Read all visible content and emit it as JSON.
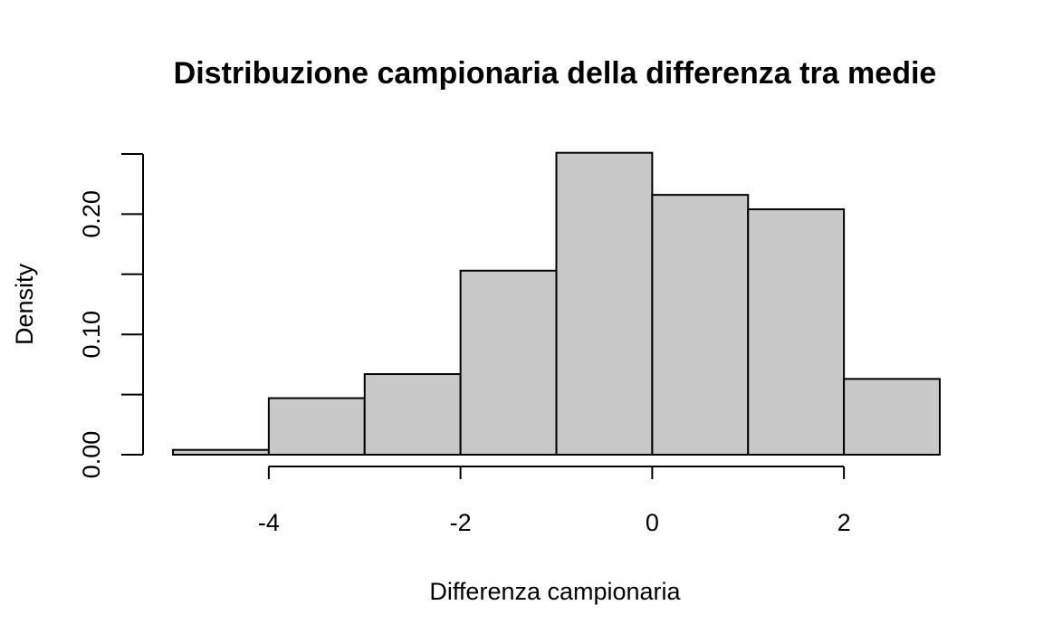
{
  "chart_data": {
    "type": "bar",
    "title": "Distribuzione campionaria della differenza tra medie",
    "xlabel": "Differenza campionaria",
    "ylabel": "Density",
    "bins": [
      {
        "from": -5,
        "to": -4,
        "density": 0.004
      },
      {
        "from": -4,
        "to": -3,
        "density": 0.047
      },
      {
        "from": -3,
        "to": -2,
        "density": 0.067
      },
      {
        "from": -2,
        "to": -1,
        "density": 0.153
      },
      {
        "from": -1,
        "to": 0,
        "density": 0.251
      },
      {
        "from": 0,
        "to": 1,
        "density": 0.216
      },
      {
        "from": 1,
        "to": 2,
        "density": 0.204
      },
      {
        "from": 2,
        "to": 3,
        "density": 0.063
      }
    ],
    "xlim": [
      -5,
      3
    ],
    "ylim": [
      0,
      0.25
    ],
    "x_ticks": [
      -4,
      -2,
      0,
      2
    ],
    "x_tick_labels": [
      "-4",
      "-2",
      "0",
      "2"
    ],
    "y_ticks": [
      0,
      0.05,
      0.1,
      0.15,
      0.2,
      0.25
    ],
    "y_tick_labels": [
      "0.00",
      "0.10",
      "0.20"
    ],
    "y_labeled_ticks": [
      0,
      0.1,
      0.2
    ],
    "bar_color": "#c8c8c8",
    "grid": false,
    "legend": "none"
  }
}
